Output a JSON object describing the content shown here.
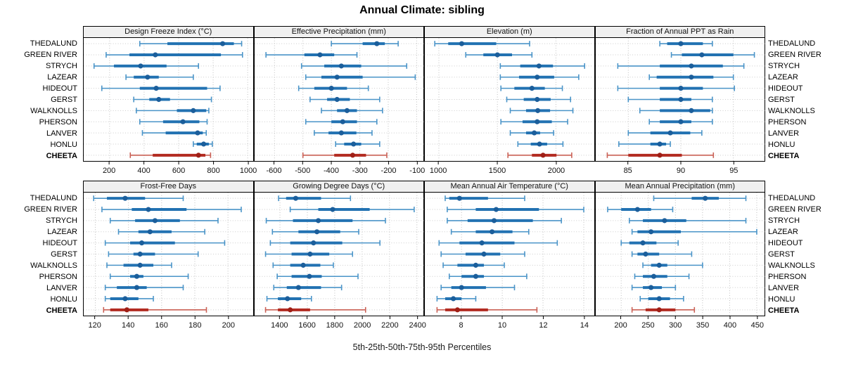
{
  "title": "Annual Climate: sibling",
  "caption": "5th-25th-50th-75th-95th Percentiles",
  "stations": [
    "THEDALUND",
    "GREEN RIVER",
    "STRYCH",
    "LAZEAR",
    "HIDEOUT",
    "GERST",
    "WALKNOLLS",
    "PHERSON",
    "LANVER",
    "HONLU",
    "CHEETA"
  ],
  "highlight_station": "CHEETA",
  "percentiles": [
    5,
    25,
    50,
    75,
    95
  ],
  "colors": {
    "blue_whisker": "#4a94c8",
    "blue_box": "#2272b2",
    "blue_dot": "#1b5e9b",
    "red_whisker": "#c96055",
    "red_box": "#b22a20",
    "red_dot": "#9f1f16",
    "header_bg": "#f0f0f0",
    "grid_vertical": "#bfbfbf",
    "grid_horizontal": "#cccccc",
    "border": "#000000"
  },
  "chart_data": [
    {
      "type": "percentile-interval",
      "title": "Design Freeze Index (°C)",
      "xlim": [
        50,
        1030
      ],
      "ticks": [
        200,
        400,
        600,
        800,
        1000
      ],
      "rows": [
        [
          375,
          535,
          855,
          920,
          965
        ],
        [
          180,
          315,
          465,
          845,
          970
        ],
        [
          110,
          225,
          380,
          530,
          715
        ],
        [
          295,
          340,
          420,
          485,
          685
        ],
        [
          155,
          375,
          470,
          765,
          840
        ],
        [
          340,
          430,
          485,
          550,
          790
        ],
        [
          355,
          590,
          685,
          760,
          775
        ],
        [
          375,
          510,
          625,
          720,
          765
        ],
        [
          390,
          525,
          710,
          740,
          760
        ],
        [
          685,
          705,
          745,
          775,
          795
        ],
        [
          320,
          450,
          715,
          755,
          785
        ]
      ]
    },
    {
      "type": "percentile-interval",
      "title": "Effective Precipitation (mm)",
      "xlim": [
        -670,
        -75
      ],
      "ticks": [
        -600,
        -500,
        -400,
        -300,
        -200,
        -100
      ],
      "rows": [
        [
          -400,
          -290,
          -240,
          -212,
          -165
        ],
        [
          -630,
          -495,
          -440,
          -390,
          -310
        ],
        [
          -505,
          -425,
          -365,
          -295,
          -135
        ],
        [
          -490,
          -435,
          -380,
          -290,
          -105
        ],
        [
          -515,
          -460,
          -400,
          -345,
          -270
        ],
        [
          -475,
          -415,
          -380,
          -335,
          -230
        ],
        [
          -435,
          -380,
          -345,
          -310,
          -220
        ],
        [
          -490,
          -400,
          -360,
          -310,
          -240
        ],
        [
          -460,
          -410,
          -365,
          -312,
          -257
        ],
        [
          -385,
          -355,
          -322,
          -295,
          -230
        ],
        [
          -500,
          -390,
          -325,
          -278,
          -205
        ]
      ]
    },
    {
      "type": "percentile-interval",
      "title": "Elevation (m)",
      "xlim": [
        880,
        2325
      ],
      "ticks": [
        1000,
        1500,
        2000
      ],
      "rows": [
        [
          965,
          1080,
          1195,
          1490,
          1775
        ],
        [
          1230,
          1380,
          1500,
          1625,
          1795
        ],
        [
          1525,
          1695,
          1855,
          1975,
          2245
        ],
        [
          1525,
          1685,
          1840,
          1985,
          2195
        ],
        [
          1530,
          1645,
          1795,
          1905,
          2055
        ],
        [
          1580,
          1725,
          1840,
          1955,
          2125
        ],
        [
          1610,
          1745,
          1845,
          1950,
          2145
        ],
        [
          1530,
          1715,
          1840,
          1965,
          2100
        ],
        [
          1610,
          1745,
          1815,
          1865,
          1980
        ],
        [
          1675,
          1785,
          1860,
          1925,
          2060
        ],
        [
          1590,
          1795,
          1890,
          2005,
          2135
        ]
      ]
    },
    {
      "type": "percentile-interval",
      "title": "Fraction of Annual PPT as Rain",
      "xlim": [
        81.9,
        98
      ],
      "ticks": [
        85,
        90,
        95
      ],
      "rows": [
        [
          88.0,
          88.7,
          90.0,
          92.1,
          93.0
        ],
        [
          89.1,
          90.1,
          92.0,
          95.0,
          97.0
        ],
        [
          84.0,
          88.0,
          91.0,
          94.0,
          96.0
        ],
        [
          87.0,
          87.7,
          91.0,
          93.1,
          95.0
        ],
        [
          84.0,
          88.0,
          90.0,
          92.1,
          95.1
        ],
        [
          85.0,
          88.0,
          90.0,
          91.0,
          93.0
        ],
        [
          86.1,
          88.0,
          91.0,
          92.8,
          93.0
        ],
        [
          87.0,
          88.0,
          90.0,
          91.0,
          93.0
        ],
        [
          85.0,
          87.1,
          89.0,
          90.9,
          92.0
        ],
        [
          84.1,
          87.1,
          88.0,
          88.6,
          89.0
        ],
        [
          83.0,
          85.0,
          88.0,
          90.1,
          93.1
        ]
      ]
    },
    {
      "type": "percentile-interval",
      "title": "Frost-Free Days",
      "xlim": [
        113,
        215
      ],
      "ticks": [
        120,
        140,
        160,
        180,
        200
      ],
      "rows": [
        [
          119,
          127,
          138,
          150,
          173
        ],
        [
          124,
          142,
          152,
          175,
          208
        ],
        [
          129,
          144,
          156,
          171,
          194
        ],
        [
          134,
          146,
          153,
          166,
          186
        ],
        [
          126,
          141,
          148,
          168,
          198
        ],
        [
          128,
          143,
          147,
          156,
          182
        ],
        [
          127,
          137,
          147,
          155,
          166
        ],
        [
          129,
          141,
          145,
          149,
          176
        ],
        [
          126,
          133,
          145,
          151,
          173
        ],
        [
          126,
          129,
          138,
          146,
          155
        ],
        [
          125,
          129,
          139,
          152,
          187
        ]
      ]
    },
    {
      "type": "percentile-interval",
      "title": "Growing Degree Days (°C)",
      "xlim": [
        1215,
        2450
      ],
      "ticks": [
        1400,
        1600,
        1800,
        2000,
        2200,
        2400
      ],
      "rows": [
        [
          1390,
          1445,
          1515,
          1700,
          1915
        ],
        [
          1475,
          1680,
          1785,
          2055,
          2380
        ],
        [
          1300,
          1495,
          1680,
          1930,
          2170
        ],
        [
          1345,
          1535,
          1670,
          1840,
          1975
        ],
        [
          1330,
          1475,
          1645,
          1855,
          2130
        ],
        [
          1295,
          1485,
          1620,
          1760,
          1930
        ],
        [
          1350,
          1475,
          1570,
          1695,
          1790
        ],
        [
          1380,
          1485,
          1615,
          1705,
          1970
        ],
        [
          1355,
          1450,
          1535,
          1700,
          1850
        ],
        [
          1305,
          1385,
          1455,
          1555,
          1630
        ],
        [
          1295,
          1385,
          1475,
          1620,
          2025
        ]
      ]
    },
    {
      "type": "percentile-interval",
      "title": "Mean Annual Air Temperature (°C)",
      "xlim": [
        6.2,
        14.5
      ],
      "ticks": [
        8,
        10,
        12,
        14
      ],
      "rows": [
        [
          7.2,
          7.4,
          7.9,
          9.3,
          11.1
        ],
        [
          7.3,
          8.7,
          9.7,
          11.8,
          14.0
        ],
        [
          7.3,
          8.3,
          9.6,
          11.5,
          12.9
        ],
        [
          7.5,
          8.7,
          9.5,
          10.5,
          11.3
        ],
        [
          6.9,
          7.9,
          9.0,
          10.6,
          12.7
        ],
        [
          7.0,
          8.2,
          9.1,
          9.9,
          11.1
        ],
        [
          7.1,
          7.8,
          8.7,
          9.1,
          10.1
        ],
        [
          7.4,
          8.0,
          8.7,
          9.1,
          11.2
        ],
        [
          7.0,
          7.5,
          8.0,
          9.2,
          10.6
        ],
        [
          6.8,
          7.2,
          7.6,
          8.0,
          8.7
        ],
        [
          6.8,
          7.2,
          7.8,
          9.3,
          11.7
        ]
      ]
    },
    {
      "type": "percentile-interval",
      "title": "Mean Annual Precipitation (mm)",
      "xlim": [
        153,
        465
      ],
      "ticks": [
        200,
        250,
        300,
        350,
        400,
        450
      ],
      "rows": [
        [
          260,
          330,
          355,
          380,
          430
        ],
        [
          175,
          200,
          230,
          255,
          295
        ],
        [
          215,
          240,
          280,
          320,
          430
        ],
        [
          220,
          230,
          255,
          310,
          450
        ],
        [
          200,
          215,
          240,
          265,
          305
        ],
        [
          220,
          230,
          245,
          270,
          330
        ],
        [
          240,
          255,
          270,
          285,
          350
        ],
        [
          225,
          240,
          260,
          285,
          325
        ],
        [
          220,
          240,
          255,
          275,
          300
        ],
        [
          235,
          250,
          270,
          290,
          315
        ],
        [
          220,
          245,
          270,
          300,
          335
        ]
      ]
    }
  ]
}
